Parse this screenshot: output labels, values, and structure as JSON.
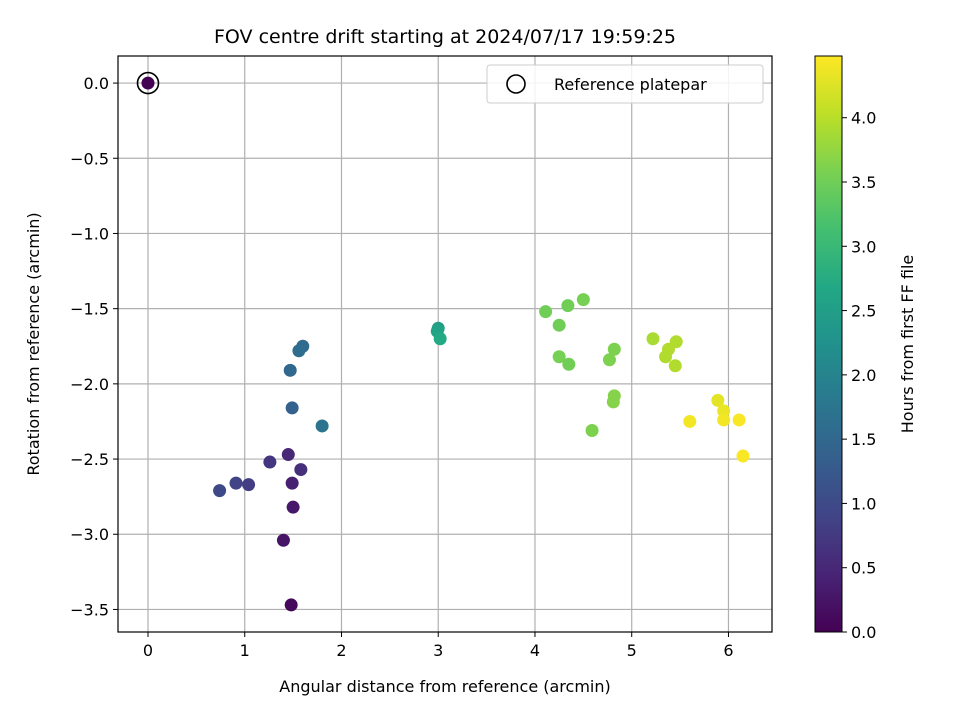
{
  "chart_data": {
    "type": "scatter",
    "title": "FOV centre drift starting at 2024/07/17 19:59:25",
    "xlabel": "Angular distance from reference (arcmin)",
    "ylabel": "Rotation from reference (arcmin)",
    "xlim": [
      -0.31,
      6.45
    ],
    "ylim": [
      -3.65,
      0.18
    ],
    "xticks": [
      0,
      1,
      2,
      3,
      4,
      5,
      6
    ],
    "xtick_labels": [
      "0",
      "1",
      "2",
      "3",
      "4",
      "5",
      "6"
    ],
    "yticks": [
      0.0,
      -0.5,
      -1.0,
      -1.5,
      -2.0,
      -2.5,
      -3.0,
      -3.5
    ],
    "ytick_labels": [
      "0.0",
      "−0.5",
      "−1.0",
      "−1.5",
      "−2.0",
      "−2.5",
      "−3.0",
      "−3.5"
    ],
    "grid": true,
    "legend": {
      "placement": "top-right",
      "entries": [
        "Reference platepar"
      ]
    },
    "reference_point": {
      "x": 0,
      "y": 0
    },
    "colorbar": {
      "label": "Hours from first FF file",
      "colormap": "viridis",
      "range": [
        0,
        4.48
      ],
      "ticks": [
        0.0,
        0.5,
        1.0,
        1.5,
        2.0,
        2.5,
        3.0,
        3.5,
        4.0
      ],
      "tick_labels": [
        "0.0",
        "0.5",
        "1.0",
        "1.5",
        "2.0",
        "2.5",
        "3.0",
        "3.5",
        "4.0"
      ]
    },
    "points": [
      {
        "x": 0.0,
        "y": 0.0,
        "h": 0.0
      },
      {
        "x": 1.48,
        "y": -3.47,
        "h": 0.1
      },
      {
        "x": 1.4,
        "y": -3.04,
        "h": 0.25
      },
      {
        "x": 1.5,
        "y": -2.82,
        "h": 0.3
      },
      {
        "x": 1.49,
        "y": -2.66,
        "h": 0.4
      },
      {
        "x": 1.45,
        "y": -2.47,
        "h": 0.5
      },
      {
        "x": 1.58,
        "y": -2.57,
        "h": 0.6
      },
      {
        "x": 1.26,
        "y": -2.52,
        "h": 0.7
      },
      {
        "x": 1.04,
        "y": -2.67,
        "h": 0.8
      },
      {
        "x": 0.91,
        "y": -2.66,
        "h": 0.9
      },
      {
        "x": 0.74,
        "y": -2.71,
        "h": 1.0
      },
      {
        "x": 1.49,
        "y": -2.16,
        "h": 1.4
      },
      {
        "x": 1.47,
        "y": -1.91,
        "h": 1.5
      },
      {
        "x": 1.6,
        "y": -1.75,
        "h": 1.55
      },
      {
        "x": 1.56,
        "y": -1.78,
        "h": 1.6
      },
      {
        "x": 1.8,
        "y": -2.28,
        "h": 1.7
      },
      {
        "x": 3.0,
        "y": -1.63,
        "h": 2.5
      },
      {
        "x": 2.99,
        "y": -1.65,
        "h": 2.6
      },
      {
        "x": 3.02,
        "y": -1.7,
        "h": 2.7
      },
      {
        "x": 4.11,
        "y": -1.52,
        "h": 3.5
      },
      {
        "x": 4.34,
        "y": -1.48,
        "h": 3.5
      },
      {
        "x": 4.5,
        "y": -1.44,
        "h": 3.55
      },
      {
        "x": 4.25,
        "y": -1.61,
        "h": 3.5
      },
      {
        "x": 4.25,
        "y": -1.82,
        "h": 3.55
      },
      {
        "x": 4.35,
        "y": -1.87,
        "h": 3.5
      },
      {
        "x": 4.77,
        "y": -1.84,
        "h": 3.6
      },
      {
        "x": 4.82,
        "y": -1.77,
        "h": 3.6
      },
      {
        "x": 4.82,
        "y": -2.08,
        "h": 3.65
      },
      {
        "x": 4.81,
        "y": -2.12,
        "h": 3.65
      },
      {
        "x": 4.59,
        "y": -2.31,
        "h": 3.6
      },
      {
        "x": 5.22,
        "y": -1.7,
        "h": 3.9
      },
      {
        "x": 5.38,
        "y": -1.77,
        "h": 3.95
      },
      {
        "x": 5.35,
        "y": -1.82,
        "h": 3.95
      },
      {
        "x": 5.46,
        "y": -1.72,
        "h": 3.95
      },
      {
        "x": 5.45,
        "y": -1.88,
        "h": 3.95
      },
      {
        "x": 5.6,
        "y": -2.25,
        "h": 4.4
      },
      {
        "x": 5.89,
        "y": -2.11,
        "h": 4.3
      },
      {
        "x": 5.95,
        "y": -2.18,
        "h": 4.35
      },
      {
        "x": 5.95,
        "y": -2.24,
        "h": 4.4
      },
      {
        "x": 6.11,
        "y": -2.24,
        "h": 4.45
      },
      {
        "x": 6.15,
        "y": -2.48,
        "h": 4.45
      }
    ]
  }
}
